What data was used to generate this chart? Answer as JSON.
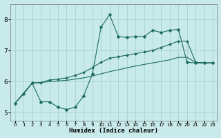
{
  "xlabel": "Humidex (Indice chaleur)",
  "bg_color": "#c8eaea",
  "grid_color": "#aed4d4",
  "line_color": "#1a6b5a",
  "xlim": [
    -0.5,
    23.5
  ],
  "ylim": [
    4.75,
    8.5
  ],
  "xticks": [
    0,
    1,
    2,
    3,
    4,
    5,
    6,
    7,
    8,
    9,
    10,
    11,
    12,
    13,
    14,
    15,
    16,
    17,
    18,
    19,
    20,
    21,
    22,
    23
  ],
  "yticks": [
    5,
    6,
    7,
    8
  ],
  "line1_x": [
    0,
    1,
    2,
    3,
    4,
    5,
    6,
    7,
    8,
    9,
    10,
    11,
    12,
    13,
    14,
    15,
    16,
    17,
    18,
    19,
    20,
    21,
    22,
    23
  ],
  "line1_y": [
    5.3,
    5.6,
    5.95,
    5.35,
    5.35,
    5.18,
    5.1,
    5.18,
    5.55,
    6.25,
    7.75,
    8.15,
    7.45,
    7.42,
    7.45,
    7.45,
    7.65,
    7.58,
    7.65,
    7.68,
    6.62,
    6.6,
    6.6,
    6.6
  ],
  "line2_x": [
    0,
    2,
    3,
    4,
    5,
    6,
    7,
    8,
    9,
    10,
    11,
    12,
    13,
    14,
    15,
    16,
    17,
    18,
    19,
    20,
    21,
    22,
    23
  ],
  "line2_y": [
    5.3,
    5.95,
    5.97,
    6.05,
    6.08,
    6.12,
    6.2,
    6.3,
    6.45,
    6.62,
    6.75,
    6.8,
    6.85,
    6.9,
    6.95,
    7.0,
    7.1,
    7.2,
    7.3,
    7.3,
    6.62,
    6.6,
    6.6
  ],
  "line3_x": [
    0,
    2,
    3,
    4,
    5,
    6,
    7,
    8,
    9,
    10,
    11,
    12,
    13,
    14,
    15,
    16,
    17,
    18,
    19,
    20,
    21,
    22,
    23
  ],
  "line3_y": [
    5.3,
    5.95,
    5.97,
    6.0,
    6.02,
    6.04,
    6.08,
    6.12,
    6.18,
    6.25,
    6.32,
    6.38,
    6.44,
    6.5,
    6.55,
    6.6,
    6.65,
    6.7,
    6.78,
    6.78,
    6.62,
    6.6,
    6.6
  ]
}
